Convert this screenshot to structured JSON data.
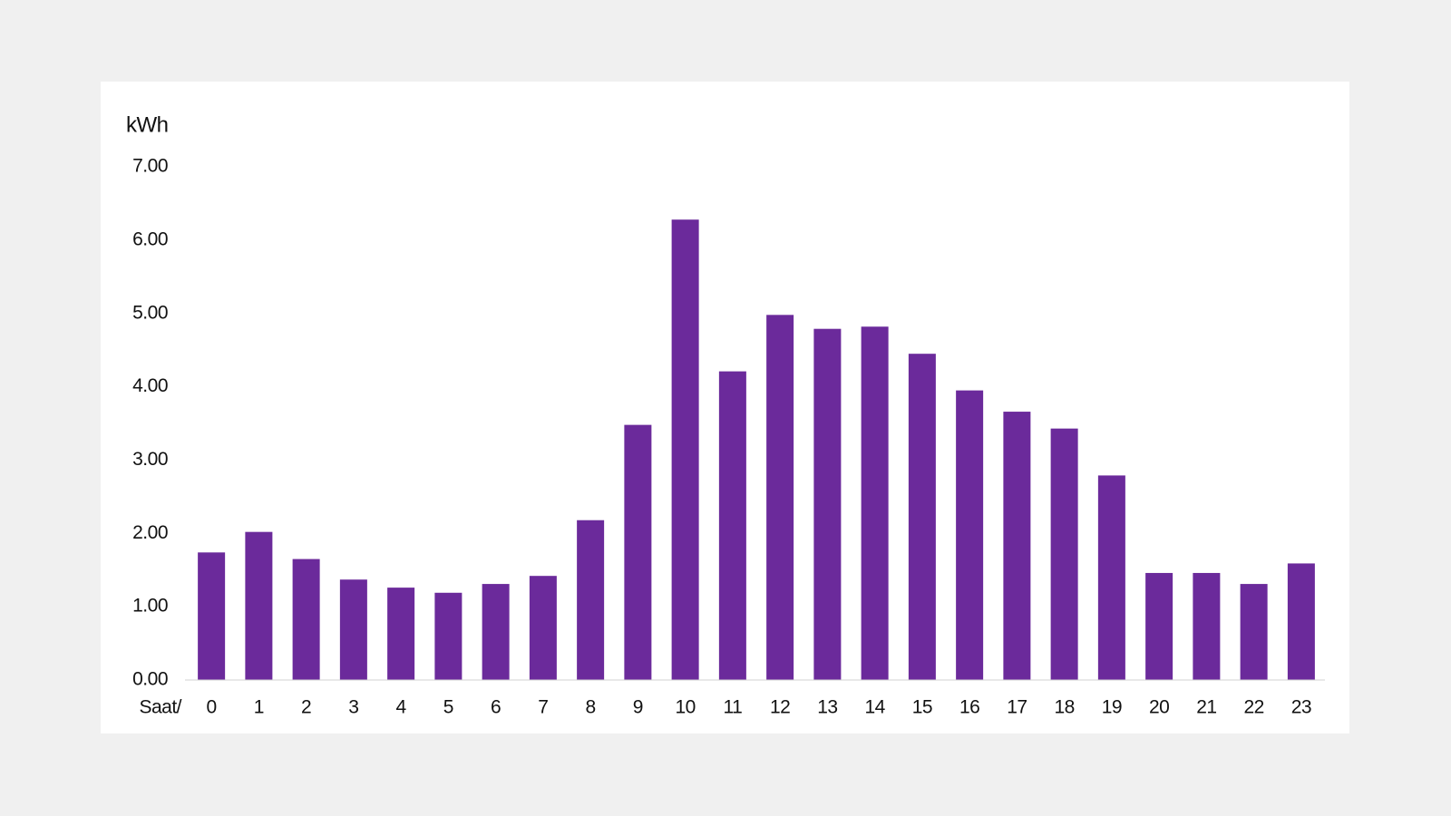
{
  "chart_data": {
    "type": "bar",
    "y_unit": "kWh",
    "x_label": "Saat/",
    "categories": [
      "0",
      "1",
      "2",
      "3",
      "4",
      "5",
      "6",
      "7",
      "8",
      "9",
      "10",
      "11",
      "12",
      "13",
      "14",
      "15",
      "16",
      "17",
      "18",
      "19",
      "20",
      "21",
      "22",
      "23"
    ],
    "values": [
      1.74,
      2.02,
      1.65,
      1.37,
      1.26,
      1.19,
      1.31,
      1.42,
      2.18,
      3.48,
      6.28,
      4.21,
      4.98,
      4.79,
      4.82,
      4.45,
      3.95,
      3.66,
      3.43,
      2.79,
      1.46,
      1.46,
      1.31,
      1.59
    ],
    "color": "#6b2a9b",
    "ylim": [
      0,
      7
    ],
    "yticks": [
      {
        "value": 0,
        "label": "0.00"
      },
      {
        "value": 1,
        "label": "1.00"
      },
      {
        "value": 2,
        "label": "2.00"
      },
      {
        "value": 3,
        "label": "3.00"
      },
      {
        "value": 4,
        "label": "4.00"
      },
      {
        "value": 5,
        "label": "5.00"
      },
      {
        "value": 6,
        "label": "6.00"
      },
      {
        "value": 7,
        "label": "7.00"
      }
    ],
    "grid": false
  }
}
